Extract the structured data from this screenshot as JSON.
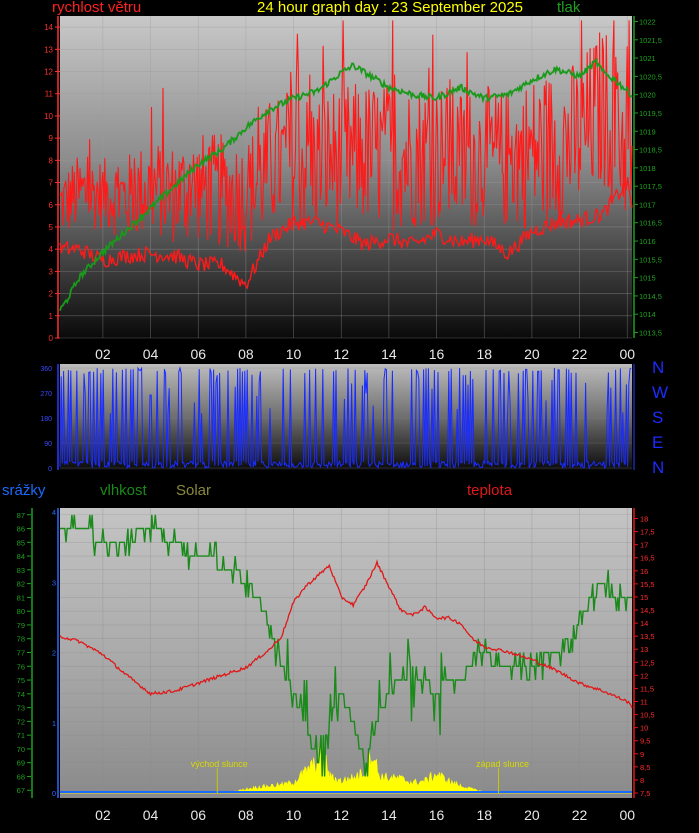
{
  "header": {
    "wind_label": "rychlost větru",
    "title": "24 hour graph day : 23 September 2025",
    "pressure_label": "tlak"
  },
  "colors": {
    "wind": "#ff1a1a",
    "pressure": "#1a9a1a",
    "direction": "#1a2cff",
    "humidity": "#1a8a1a",
    "temperature": "#e01818",
    "solar": "#ffff00",
    "rain": "#1a6aff"
  },
  "directions": [
    "N",
    "W",
    "S",
    "E",
    "N"
  ],
  "legend2": {
    "rain": "srážky",
    "humidity": "vlhkost",
    "solar": "Solar",
    "temperature": "teplota"
  },
  "annotations": {
    "sunrise": "východ slunce",
    "sunset": "západ slunce"
  },
  "chart_data": [
    {
      "type": "line",
      "title": "24 hour graph day : 23 September 2025",
      "x_ticks": [
        "02",
        "04",
        "06",
        "08",
        "10",
        "12",
        "14",
        "16",
        "18",
        "20",
        "22",
        "00"
      ],
      "x_tick_hours": [
        2,
        4,
        6,
        8,
        10,
        12,
        14,
        16,
        18,
        20,
        22,
        24
      ],
      "xlim": [
        0.2,
        24.2
      ],
      "left_axis": {
        "label": "rychlost větru",
        "ticks": [
          "0",
          "1",
          "2",
          "3",
          "4",
          "5",
          "6",
          "7",
          "8",
          "9",
          "10",
          "11",
          "12",
          "13",
          "14"
        ],
        "ylim": [
          0,
          14.5
        ]
      },
      "right_axis": {
        "label": "tlak",
        "ticks": [
          "1013,5",
          "1014",
          "1014,5",
          "1015",
          "1015,5",
          "1016",
          "1016,5",
          "1017",
          "1017,5",
          "1018",
          "1018,5",
          "1019",
          "1019,5",
          "1020",
          "1020,5",
          "1021",
          "1021,5",
          "1022"
        ],
        "ylim": [
          1013.35,
          1022.15
        ]
      },
      "series": [
        {
          "name": "rychlost větru",
          "axis": "left",
          "x": [
            0.2,
            1,
            2,
            3,
            4,
            5,
            6,
            7,
            8,
            9,
            10,
            11,
            12,
            13,
            14,
            15,
            16,
            17,
            18,
            19,
            20,
            21,
            22,
            23,
            24,
            24.2
          ],
          "values": [
            6,
            6.5,
            6.5,
            6.3,
            6.8,
            6.5,
            6.8,
            6.6,
            6.4,
            7.8,
            8,
            8,
            8.2,
            8.3,
            8.2,
            8.2,
            8.4,
            8,
            8.2,
            8,
            8.4,
            8.6,
            9,
            10.5,
            8.5,
            8
          ],
          "spread": [
            1.5,
            1.8,
            1.6,
            2,
            2.2,
            2.3,
            2.5,
            2.6,
            2.6,
            3,
            3.2,
            3.2,
            3.3,
            3.3,
            3.4,
            3.3,
            3.4,
            3.3,
            3.2,
            3.2,
            3.5,
            3.6,
            3.6,
            3.8,
            3.4,
            3
          ]
        },
        {
          "name": "wind average",
          "axis": "left",
          "x": [
            0.2,
            1,
            2,
            3,
            4,
            5,
            6,
            7,
            8,
            9,
            10,
            11,
            12,
            13,
            14,
            15,
            16,
            17,
            18,
            19,
            20,
            21,
            22,
            23,
            24,
            24.2
          ],
          "values": [
            4,
            4,
            3.5,
            3.7,
            3.8,
            3.7,
            3.3,
            3.3,
            2.4,
            4.5,
            5.2,
            5.2,
            4.8,
            4.2,
            4.5,
            4.2,
            4.7,
            4.3,
            4.5,
            3.8,
            4.8,
            5.2,
            5.3,
            5.6,
            7,
            6
          ]
        },
        {
          "name": "tlak",
          "axis": "right",
          "x": [
            0.2,
            0.5,
            1,
            2,
            3,
            4,
            5,
            6,
            7,
            8,
            9,
            10,
            11,
            12,
            12.5,
            13,
            14,
            15,
            16,
            17,
            18,
            19,
            20,
            21,
            22,
            22.7,
            23,
            23.5,
            24,
            24.2
          ],
          "values": [
            1014.1,
            1014.4,
            1015,
            1015.7,
            1016.3,
            1016.9,
            1017.5,
            1018.1,
            1018.5,
            1019.1,
            1019.6,
            1019.9,
            1020.1,
            1020.6,
            1020.8,
            1020.6,
            1020.2,
            1020,
            1019.9,
            1020.2,
            1019.9,
            1020,
            1020.4,
            1020.7,
            1020.5,
            1020.9,
            1020.6,
            1020.4,
            1020.1,
            1020
          ]
        }
      ]
    },
    {
      "type": "line",
      "y_ticks": [
        "0",
        "90",
        "180",
        "270",
        "360"
      ],
      "ylim": [
        0,
        360
      ],
      "series": [
        {
          "name": "wind direction",
          "values": [
            0,
            360
          ]
        }
      ]
    },
    {
      "type": "line",
      "x_ticks": [
        "02",
        "04",
        "06",
        "08",
        "10",
        "12",
        "14",
        "16",
        "18",
        "20",
        "22",
        "00"
      ],
      "x_tick_hours": [
        2,
        4,
        6,
        8,
        10,
        12,
        14,
        16,
        18,
        20,
        22,
        24
      ],
      "xlim": [
        0.2,
        24.2
      ],
      "left_axis": {
        "label": "vlhkost",
        "ticks": [
          "67",
          "68",
          "69",
          "70",
          "71",
          "72",
          "73",
          "74",
          "75",
          "76",
          "77",
          "78",
          "79",
          "80",
          "81",
          "82",
          "83",
          "84",
          "85",
          "86",
          "87"
        ],
        "ylim": [
          66.8,
          87.2
        ]
      },
      "rain_axis": {
        "label": "srážky",
        "ticks": [
          "0",
          "1",
          "2",
          "3",
          "4"
        ],
        "ylim": [
          0,
          4
        ]
      },
      "right_axis": {
        "label": "teplota",
        "ticks": [
          "7,5",
          "8",
          "8,5",
          "9",
          "9,5",
          "10",
          "10,5",
          "11",
          "11,5",
          "12",
          "12,5",
          "13",
          "13,5",
          "14",
          "14,5",
          "15",
          "15,5",
          "16",
          "16,5",
          "17",
          "17,5",
          "18"
        ],
        "ylim": [
          7.5,
          18.25
        ]
      },
      "series": [
        {
          "name": "vlhkost",
          "axis": "left",
          "x": [
            0.2,
            1.5,
            1.6,
            2.5,
            3,
            3.8,
            4,
            4.8,
            5,
            6,
            6.5,
            7,
            7.5,
            8,
            8.5,
            9,
            9.5,
            10,
            10.5,
            11,
            11.5,
            12,
            12.5,
            13,
            13.5,
            14,
            14.5,
            15,
            15.5,
            16,
            16.5,
            17,
            17.5,
            18,
            18.5,
            19,
            20,
            21,
            21.5,
            22,
            22.5,
            23,
            23.5,
            24,
            24.2
          ],
          "values": [
            86,
            86,
            85,
            85,
            85,
            86,
            86,
            85,
            85,
            84,
            84,
            83,
            83,
            82,
            81,
            79,
            76,
            74,
            72,
            69,
            72,
            74,
            72,
            69,
            72,
            74,
            75,
            75,
            75,
            74,
            75,
            75,
            76,
            77,
            76,
            76,
            76,
            77,
            78,
            79,
            81,
            82,
            81,
            81,
            81
          ]
        },
        {
          "name": "teplota",
          "axis": "right",
          "x": [
            0.2,
            1,
            2,
            3,
            4,
            5,
            6,
            7,
            8,
            9,
            9.5,
            10,
            10.5,
            11,
            11.5,
            12,
            12.5,
            13,
            13.5,
            14,
            14.5,
            15,
            15.5,
            16,
            16.5,
            17,
            17.5,
            18,
            19,
            20,
            21,
            22,
            23,
            24,
            24.2
          ],
          "values": [
            13.5,
            13.3,
            12.8,
            12,
            11.3,
            11.4,
            11.7,
            12,
            12.3,
            13,
            13.5,
            14.8,
            15.4,
            15.8,
            16.2,
            15,
            14.7,
            15.4,
            16.3,
            15.4,
            14.5,
            14.3,
            14.6,
            14.2,
            14.2,
            14,
            13.4,
            13.1,
            12.9,
            12.6,
            12.2,
            11.7,
            11.4,
            11,
            10.8
          ]
        },
        {
          "name": "Solar",
          "axis": "relative",
          "x": [
            0.2,
            6.8,
            7,
            7.5,
            8,
            8.5,
            9,
            9.5,
            10,
            10.5,
            11,
            11.2,
            11.5,
            12,
            12.5,
            13,
            13.3,
            13.6,
            14,
            14.5,
            15,
            15.5,
            16,
            16.5,
            17,
            17.5,
            18,
            18.5,
            24.2
          ],
          "values": [
            0,
            0,
            0.01,
            0.03,
            0.08,
            0.12,
            0.15,
            0.17,
            0.22,
            0.45,
            0.65,
            1,
            0.35,
            0.25,
            0.32,
            0.45,
            0.9,
            0.35,
            0.32,
            0.3,
            0.22,
            0.25,
            0.4,
            0.25,
            0.15,
            0.08,
            0.02,
            0,
            0
          ]
        },
        {
          "name": "srážky",
          "axis": "rain",
          "x": [
            0.2,
            24.2
          ],
          "values": [
            0,
            0
          ]
        }
      ]
    }
  ]
}
